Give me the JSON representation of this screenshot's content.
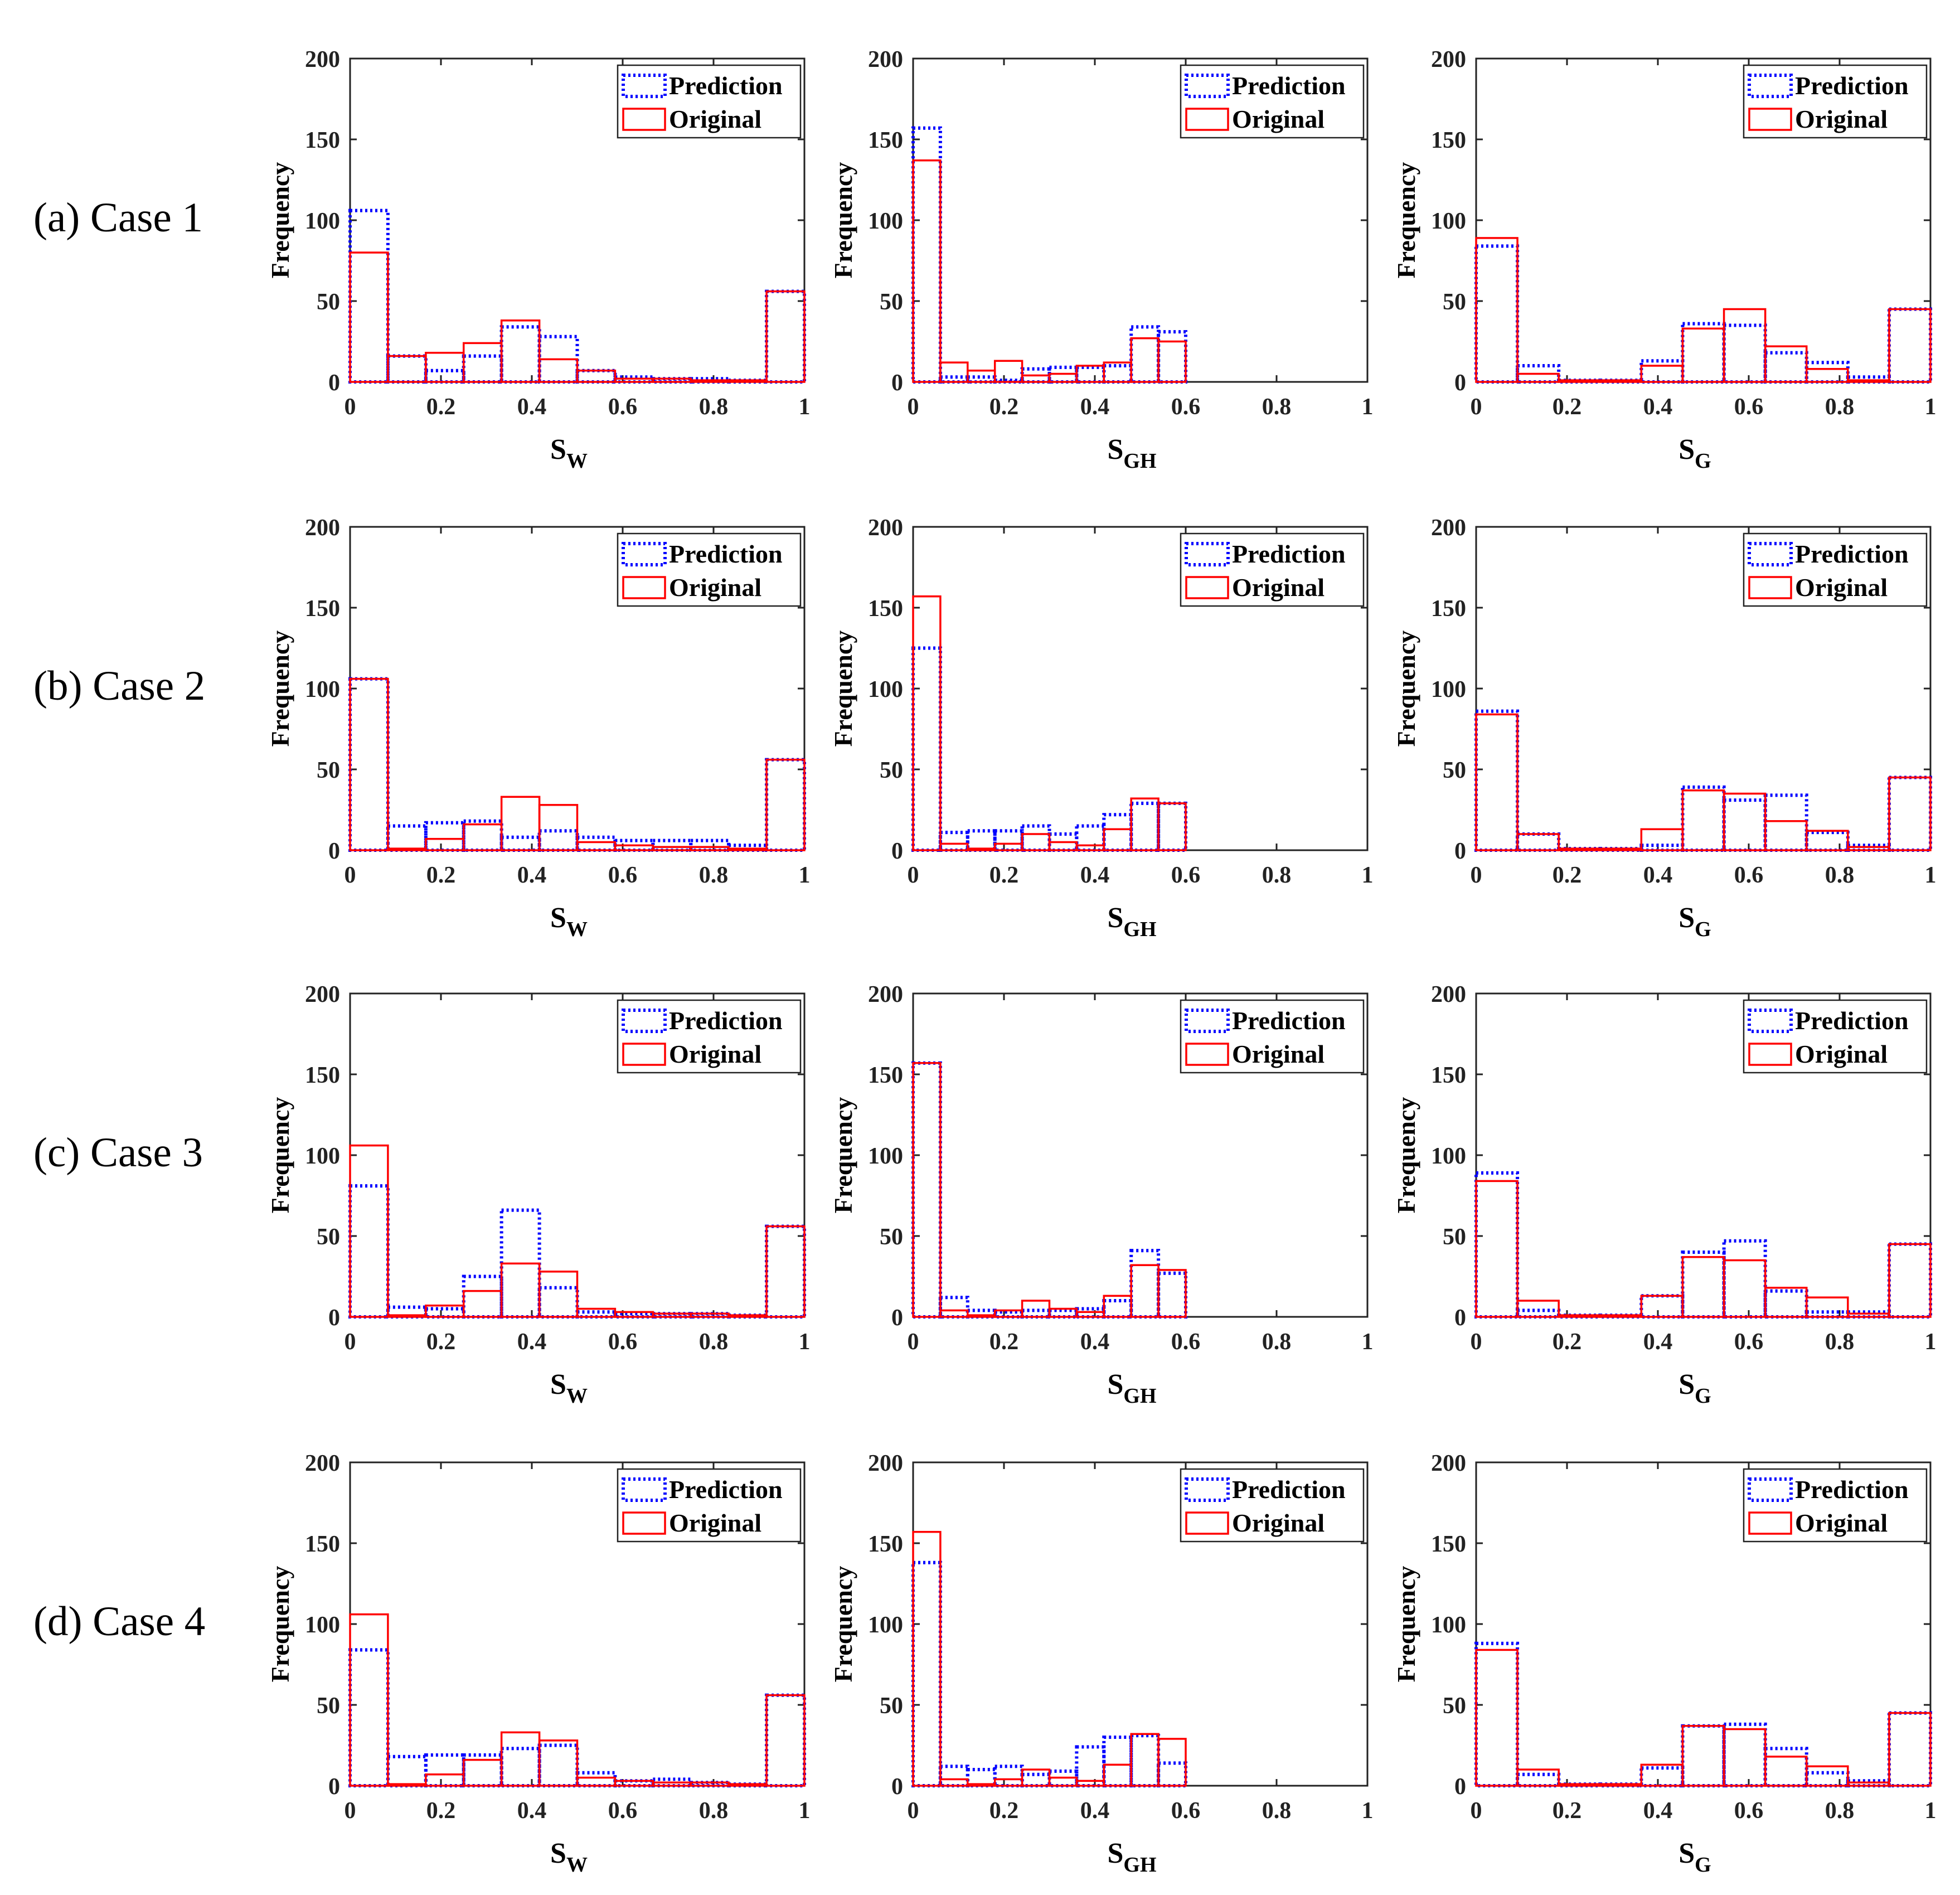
{
  "figure": {
    "row_labels": [
      "(a) Case 1",
      "(b) Case 2",
      "(c) Case 3",
      "(d) Case 4"
    ],
    "colors": {
      "prediction": "#0000ff",
      "original": "#ff0000"
    },
    "legend": {
      "prediction": "Prediction",
      "original": "Original"
    }
  },
  "chart_data": [
    {
      "type": "bar",
      "case": "(a) Case 1",
      "ylabel": "Frequency",
      "xlabel_main": "S",
      "xlabel_sub": "W",
      "xlim": [
        0,
        1
      ],
      "ylim": [
        0,
        200
      ],
      "xticks": [
        "0",
        "0.2",
        "0.4",
        "0.6",
        "0.8",
        "1"
      ],
      "yticks": [
        "0",
        "50",
        "100",
        "150",
        "200"
      ],
      "bin_edges": [
        0,
        0.0833,
        0.1667,
        0.25,
        0.3333,
        0.4167,
        0.5,
        0.5833,
        0.6667,
        0.75,
        0.8333,
        0.9167,
        1
      ],
      "series": [
        {
          "name": "Prediction",
          "values": [
            106,
            16,
            7,
            16,
            34,
            28,
            7,
            3,
            2,
            2,
            1,
            56
          ]
        },
        {
          "name": "Original",
          "values": [
            80,
            16,
            18,
            24,
            38,
            14,
            7,
            2,
            2,
            1,
            1,
            56
          ]
        }
      ]
    },
    {
      "type": "bar",
      "case": "(a) Case 1",
      "ylabel": "Frequency",
      "xlabel_main": "S",
      "xlabel_sub": "GH",
      "xlim": [
        0,
        1
      ],
      "ylim": [
        0,
        200
      ],
      "xticks": [
        "0",
        "0.2",
        "0.4",
        "0.6",
        "0.8",
        "1"
      ],
      "yticks": [
        "0",
        "50",
        "100",
        "150",
        "200"
      ],
      "bin_edges": [
        0,
        0.06,
        0.12,
        0.18,
        0.24,
        0.3,
        0.36,
        0.42,
        0.48,
        0.54,
        0.6
      ],
      "series": [
        {
          "name": "Prediction",
          "values": [
            157,
            3,
            3,
            1,
            8,
            9,
            9,
            10,
            34,
            31
          ]
        },
        {
          "name": "Original",
          "values": [
            137,
            12,
            7,
            13,
            4,
            5,
            10,
            12,
            27,
            25
          ]
        }
      ]
    },
    {
      "type": "bar",
      "case": "(a) Case 1",
      "ylabel": "Frequency",
      "xlabel_main": "S",
      "xlabel_sub": "G",
      "xlim": [
        0,
        1
      ],
      "ylim": [
        0,
        200
      ],
      "xticks": [
        "0",
        "0.2",
        "0.4",
        "0.6",
        "0.8",
        "1"
      ],
      "yticks": [
        "0",
        "50",
        "100",
        "150",
        "200"
      ],
      "bin_edges": [
        0,
        0.0909,
        0.1818,
        0.2727,
        0.3636,
        0.4545,
        0.5455,
        0.6364,
        0.7273,
        0.8182,
        0.9091,
        1
      ],
      "series": [
        {
          "name": "Prediction",
          "values": [
            84,
            10,
            1,
            1,
            13,
            36,
            35,
            18,
            12,
            3,
            45
          ]
        },
        {
          "name": "Original",
          "values": [
            89,
            5,
            1,
            1,
            10,
            33,
            45,
            22,
            8,
            1,
            45
          ]
        }
      ]
    },
    {
      "type": "bar",
      "case": "(b) Case 2",
      "ylabel": "Frequency",
      "xlabel_main": "S",
      "xlabel_sub": "W",
      "xlim": [
        0,
        1
      ],
      "ylim": [
        0,
        200
      ],
      "xticks": [
        "0",
        "0.2",
        "0.4",
        "0.6",
        "0.8",
        "1"
      ],
      "yticks": [
        "0",
        "50",
        "100",
        "150",
        "200"
      ],
      "bin_edges": [
        0,
        0.0833,
        0.1667,
        0.25,
        0.3333,
        0.4167,
        0.5,
        0.5833,
        0.6667,
        0.75,
        0.8333,
        0.9167,
        1
      ],
      "series": [
        {
          "name": "Prediction",
          "values": [
            106,
            15,
            17,
            18,
            8,
            12,
            8,
            6,
            6,
            6,
            3,
            56
          ]
        },
        {
          "name": "Original",
          "values": [
            106,
            1,
            7,
            16,
            33,
            28,
            5,
            3,
            2,
            2,
            1,
            56
          ]
        }
      ]
    },
    {
      "type": "bar",
      "case": "(b) Case 2",
      "ylabel": "Frequency",
      "xlabel_main": "S",
      "xlabel_sub": "GH",
      "xlim": [
        0,
        1
      ],
      "ylim": [
        0,
        200
      ],
      "xticks": [
        "0",
        "0.2",
        "0.4",
        "0.6",
        "0.8",
        "1"
      ],
      "yticks": [
        "0",
        "50",
        "100",
        "150",
        "200"
      ],
      "bin_edges": [
        0,
        0.06,
        0.12,
        0.18,
        0.24,
        0.3,
        0.36,
        0.42,
        0.48,
        0.54,
        0.6
      ],
      "series": [
        {
          "name": "Prediction",
          "values": [
            125,
            11,
            12,
            12,
            15,
            10,
            15,
            22,
            29,
            29
          ]
        },
        {
          "name": "Original",
          "values": [
            157,
            4,
            1,
            4,
            10,
            5,
            3,
            13,
            32,
            29
          ]
        }
      ]
    },
    {
      "type": "bar",
      "case": "(b) Case 2",
      "ylabel": "Frequency",
      "xlabel_main": "S",
      "xlabel_sub": "G",
      "xlim": [
        0,
        1
      ],
      "ylim": [
        0,
        200
      ],
      "xticks": [
        "0",
        "0.2",
        "0.4",
        "0.6",
        "0.8",
        "1"
      ],
      "yticks": [
        "0",
        "50",
        "100",
        "150",
        "200"
      ],
      "bin_edges": [
        0,
        0.0909,
        0.1818,
        0.2727,
        0.3636,
        0.4545,
        0.5455,
        0.6364,
        0.7273,
        0.8182,
        0.9091,
        1
      ],
      "series": [
        {
          "name": "Prediction",
          "values": [
            86,
            10,
            1,
            1,
            3,
            39,
            31,
            34,
            11,
            3,
            45
          ]
        },
        {
          "name": "Original",
          "values": [
            84,
            10,
            1,
            1,
            13,
            37,
            35,
            18,
            12,
            2,
            45
          ]
        }
      ]
    },
    {
      "type": "bar",
      "case": "(c) Case 3",
      "ylabel": "Frequency",
      "xlabel_main": "S",
      "xlabel_sub": "W",
      "xlim": [
        0,
        1
      ],
      "ylim": [
        0,
        200
      ],
      "xticks": [
        "0",
        "0.2",
        "0.4",
        "0.6",
        "0.8",
        "1"
      ],
      "yticks": [
        "0",
        "50",
        "100",
        "150",
        "200"
      ],
      "bin_edges": [
        0,
        0.0833,
        0.1667,
        0.25,
        0.3333,
        0.4167,
        0.5,
        0.5833,
        0.6667,
        0.75,
        0.8333,
        0.9167,
        1
      ],
      "series": [
        {
          "name": "Prediction",
          "values": [
            81,
            6,
            5,
            25,
            66,
            18,
            3,
            2,
            2,
            2,
            1,
            56
          ]
        },
        {
          "name": "Original",
          "values": [
            106,
            1,
            7,
            16,
            33,
            28,
            5,
            3,
            2,
            2,
            1,
            56
          ]
        }
      ]
    },
    {
      "type": "bar",
      "case": "(c) Case 3",
      "ylabel": "Frequency",
      "xlabel_main": "S",
      "xlabel_sub": "GH",
      "xlim": [
        0,
        1
      ],
      "ylim": [
        0,
        200
      ],
      "xticks": [
        "0",
        "0.2",
        "0.4",
        "0.6",
        "0.8",
        "1"
      ],
      "yticks": [
        "0",
        "50",
        "100",
        "150",
        "200"
      ],
      "bin_edges": [
        0,
        0.06,
        0.12,
        0.18,
        0.24,
        0.3,
        0.36,
        0.42,
        0.48,
        0.54,
        0.6
      ],
      "series": [
        {
          "name": "Prediction",
          "values": [
            157,
            12,
            4,
            3,
            4,
            4,
            5,
            10,
            41,
            27
          ]
        },
        {
          "name": "Original",
          "values": [
            157,
            4,
            1,
            4,
            10,
            5,
            3,
            13,
            32,
            29
          ]
        }
      ]
    },
    {
      "type": "bar",
      "case": "(c) Case 3",
      "ylabel": "Frequency",
      "xlabel_main": "S",
      "xlabel_sub": "G",
      "xlim": [
        0,
        1
      ],
      "ylim": [
        0,
        200
      ],
      "xticks": [
        "0",
        "0.2",
        "0.4",
        "0.6",
        "0.8",
        "1"
      ],
      "yticks": [
        "0",
        "50",
        "100",
        "150",
        "200"
      ],
      "bin_edges": [
        0,
        0.0909,
        0.1818,
        0.2727,
        0.3636,
        0.4545,
        0.5455,
        0.6364,
        0.7273,
        0.8182,
        0.9091,
        1
      ],
      "series": [
        {
          "name": "Prediction",
          "values": [
            89,
            4,
            1,
            1,
            13,
            40,
            47,
            16,
            3,
            3,
            45
          ]
        },
        {
          "name": "Original",
          "values": [
            84,
            10,
            1,
            1,
            13,
            37,
            35,
            18,
            12,
            2,
            45
          ]
        }
      ]
    },
    {
      "type": "bar",
      "case": "(d) Case 4",
      "ylabel": "Frequency",
      "xlabel_main": "S",
      "xlabel_sub": "W",
      "xlim": [
        0,
        1
      ],
      "ylim": [
        0,
        200
      ],
      "xticks": [
        "0",
        "0.2",
        "0.4",
        "0.6",
        "0.8",
        "1"
      ],
      "yticks": [
        "0",
        "50",
        "100",
        "150",
        "200"
      ],
      "bin_edges": [
        0,
        0.0833,
        0.1667,
        0.25,
        0.3333,
        0.4167,
        0.5,
        0.5833,
        0.6667,
        0.75,
        0.8333,
        0.9167,
        1
      ],
      "series": [
        {
          "name": "Prediction",
          "values": [
            84,
            18,
            19,
            19,
            23,
            25,
            8,
            3,
            4,
            2,
            1,
            56
          ]
        },
        {
          "name": "Original",
          "values": [
            106,
            1,
            7,
            16,
            33,
            28,
            5,
            3,
            2,
            2,
            1,
            56
          ]
        }
      ]
    },
    {
      "type": "bar",
      "case": "(d) Case 4",
      "ylabel": "Frequency",
      "xlabel_main": "S",
      "xlabel_sub": "GH",
      "xlim": [
        0,
        1
      ],
      "ylim": [
        0,
        200
      ],
      "xticks": [
        "0",
        "0.2",
        "0.4",
        "0.6",
        "0.8",
        "1"
      ],
      "yticks": [
        "0",
        "50",
        "100",
        "150",
        "200"
      ],
      "bin_edges": [
        0,
        0.06,
        0.12,
        0.18,
        0.24,
        0.3,
        0.36,
        0.42,
        0.48,
        0.54,
        0.6
      ],
      "series": [
        {
          "name": "Prediction",
          "values": [
            138,
            12,
            10,
            12,
            7,
            9,
            24,
            30,
            31,
            14
          ]
        },
        {
          "name": "Original",
          "values": [
            157,
            4,
            1,
            4,
            10,
            5,
            3,
            13,
            32,
            29
          ]
        }
      ]
    },
    {
      "type": "bar",
      "case": "(d) Case 4",
      "ylabel": "Frequency",
      "xlabel_main": "S",
      "xlabel_sub": "G",
      "xlim": [
        0,
        1
      ],
      "ylim": [
        0,
        200
      ],
      "xticks": [
        "0",
        "0.2",
        "0.4",
        "0.6",
        "0.8",
        "1"
      ],
      "yticks": [
        "0",
        "50",
        "100",
        "150",
        "200"
      ],
      "bin_edges": [
        0,
        0.0909,
        0.1818,
        0.2727,
        0.3636,
        0.4545,
        0.5455,
        0.6364,
        0.7273,
        0.8182,
        0.9091,
        1
      ],
      "series": [
        {
          "name": "Prediction",
          "values": [
            88,
            7,
            1,
            1,
            11,
            37,
            38,
            23,
            8,
            3,
            45
          ]
        },
        {
          "name": "Original",
          "values": [
            84,
            10,
            1,
            1,
            13,
            37,
            35,
            18,
            12,
            2,
            45
          ]
        }
      ]
    }
  ]
}
